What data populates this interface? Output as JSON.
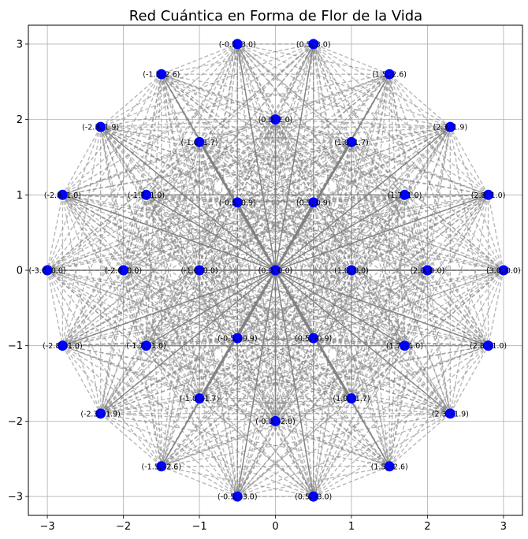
{
  "chart_data": {
    "type": "scatter",
    "title": "Red Cuántica en Forma de Flor de la Vida",
    "xlabel": "",
    "ylabel": "",
    "xlim": [
      -3.25,
      3.25
    ],
    "ylim": [
      -3.25,
      3.25
    ],
    "x_ticks": [
      -3,
      -2,
      -1,
      0,
      1,
      2,
      3
    ],
    "y_ticks": [
      -3,
      -2,
      -1,
      0,
      1,
      2,
      3
    ],
    "x_tick_labels": [
      "−3",
      "−2",
      "−1",
      "0",
      "1",
      "2",
      "3"
    ],
    "y_tick_labels": [
      "−3",
      "−2",
      "−1",
      "0",
      "1",
      "2",
      "3"
    ],
    "grid": true,
    "colors": {
      "node": "#0000ff",
      "edge": "#808080",
      "grid": "#b0b0b0",
      "axes": "#000000"
    },
    "center": {
      "x": 0.0,
      "y": 0.0,
      "label": "(0.0, 0.0)"
    },
    "rings": [
      {
        "radius": 1.0,
        "points": [
          {
            "x": 1.0,
            "y": 0.0,
            "label": "(1.0, 0.0)"
          },
          {
            "x": 0.5,
            "y": 0.9,
            "label": "(0.5, 0.9)"
          },
          {
            "x": -0.5,
            "y": 0.9,
            "label": "(-0.5, 0.9)"
          },
          {
            "x": -1.0,
            "y": 0.0,
            "label": "(-1.0, 0.0)"
          },
          {
            "x": -0.5,
            "y": -0.9,
            "label": "(-0.5, -0.9)"
          },
          {
            "x": 0.5,
            "y": -0.9,
            "label": "(0.5, -0.9)"
          }
        ]
      },
      {
        "radius": 2.0,
        "points": [
          {
            "x": 2.0,
            "y": 0.0,
            "label": "(2.0, 0.0)"
          },
          {
            "x": 1.7,
            "y": 1.0,
            "label": "(1.7, 1.0)"
          },
          {
            "x": 1.0,
            "y": 1.7,
            "label": "(1.0, 1.7)"
          },
          {
            "x": 0.0,
            "y": 2.0,
            "label": "(0.0, 2.0)"
          },
          {
            "x": -1.0,
            "y": 1.7,
            "label": "(-1.0, 1.7)"
          },
          {
            "x": -1.7,
            "y": 1.0,
            "label": "(-1.7, 1.0)"
          },
          {
            "x": -2.0,
            "y": 0.0,
            "label": "(-2.0, 0.0)"
          },
          {
            "x": -1.7,
            "y": -1.0,
            "label": "(-1.7, -1.0)"
          },
          {
            "x": -1.0,
            "y": -1.7,
            "label": "(-1.0, -1.7)"
          },
          {
            "x": -0.0,
            "y": -2.0,
            "label": "(-0.0, -2.0)"
          },
          {
            "x": 1.0,
            "y": -1.7,
            "label": "(1.0, -1.7)"
          },
          {
            "x": 1.7,
            "y": -1.0,
            "label": "(1.7, -1.0)"
          }
        ]
      },
      {
        "radius": 3.0,
        "points": [
          {
            "x": 3.0,
            "y": 0.0,
            "label": "(3.0, 0.0)"
          },
          {
            "x": 2.8,
            "y": 1.0,
            "label": "(2.8, 1.0)"
          },
          {
            "x": 2.3,
            "y": 1.9,
            "label": "(2.3, 1.9)"
          },
          {
            "x": 1.5,
            "y": 2.6,
            "label": "(1.5, 2.6)"
          },
          {
            "x": 0.5,
            "y": 3.0,
            "label": "(0.5, 3.0)"
          },
          {
            "x": -0.5,
            "y": 3.0,
            "label": "(-0.5, 3.0)"
          },
          {
            "x": -1.5,
            "y": 2.6,
            "label": "(-1.5, 2.6)"
          },
          {
            "x": -2.3,
            "y": 1.9,
            "label": "(-2.3, 1.9)"
          },
          {
            "x": -2.8,
            "y": 1.0,
            "label": "(-2.8, 1.0)"
          },
          {
            "x": -3.0,
            "y": 0.0,
            "label": "(-3.0, 0.0)"
          },
          {
            "x": -2.8,
            "y": -1.0,
            "label": "(-2.8, -1.0)"
          },
          {
            "x": -2.3,
            "y": -1.9,
            "label": "(-2.3, -1.9)"
          },
          {
            "x": -1.5,
            "y": -2.6,
            "label": "(-1.5, -2.6)"
          },
          {
            "x": -0.5,
            "y": -3.0,
            "label": "(-0.5, -3.0)"
          },
          {
            "x": 0.5,
            "y": -3.0,
            "label": "(0.5, -3.0)"
          },
          {
            "x": 1.5,
            "y": -2.6,
            "label": "(1.5, -2.6)"
          },
          {
            "x": 2.3,
            "y": -1.9,
            "label": "(2.3, -1.9)"
          },
          {
            "x": 2.8,
            "y": -1.0,
            "label": "(2.8, -1.0)"
          }
        ]
      }
    ]
  }
}
